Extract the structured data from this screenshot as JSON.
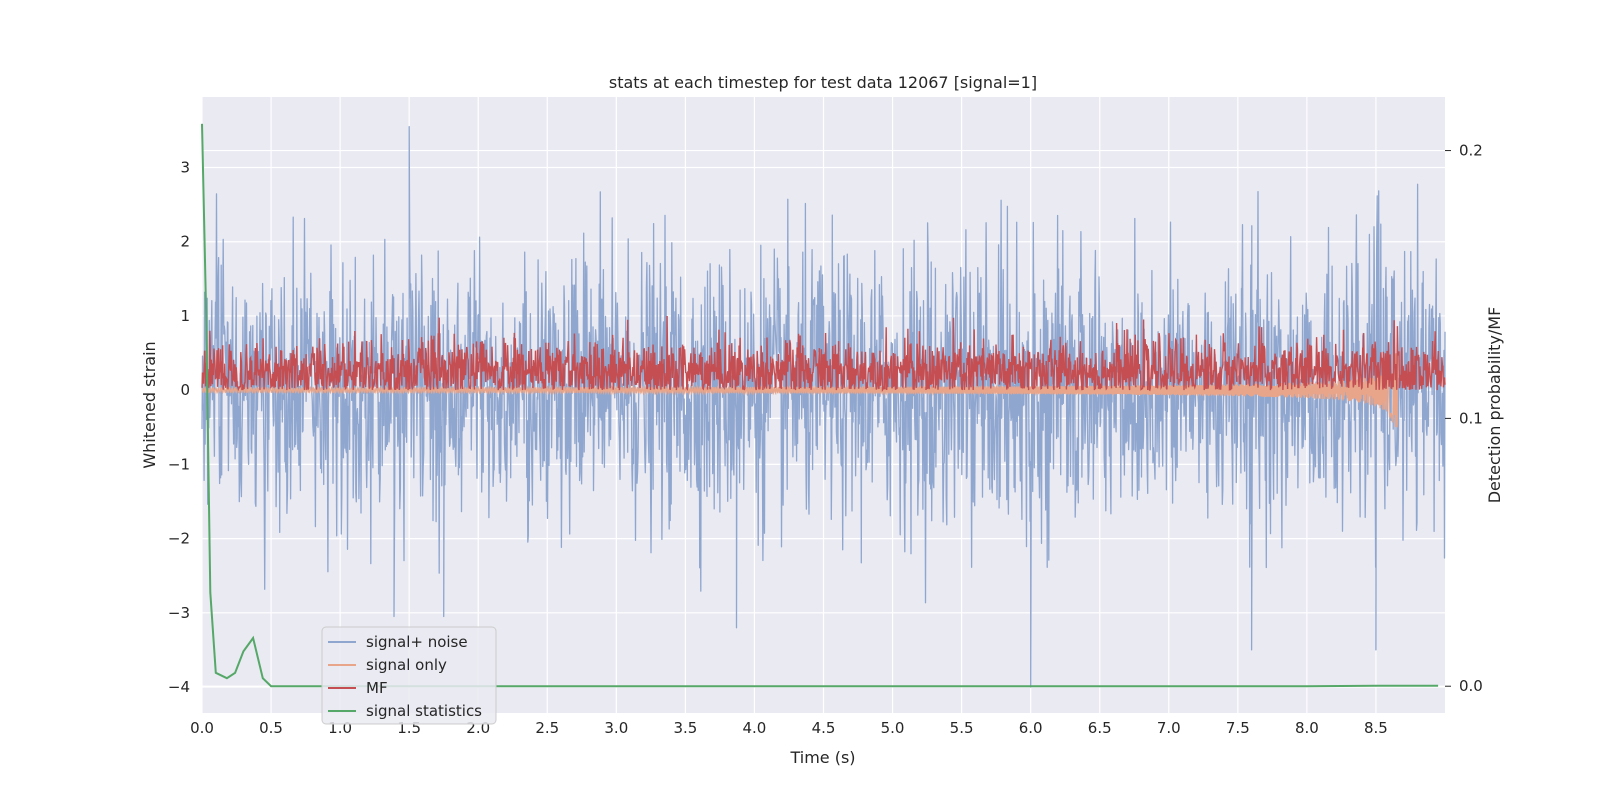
{
  "chart_data": {
    "type": "line",
    "title": "stats at each timestep for test data 12067 [signal=1]",
    "xlabel": "Time (s)",
    "ylabel": "Whitened strain",
    "ylabel_right": "Detection probability/MF",
    "xlim": [
      0,
      9.0
    ],
    "ylim": [
      -4.35,
      3.95
    ],
    "ylim_right": [
      -0.01,
      0.22
    ],
    "x_ticks": [
      0.0,
      0.5,
      1.0,
      1.5,
      2.0,
      2.5,
      3.0,
      3.5,
      4.0,
      4.5,
      5.0,
      5.5,
      6.0,
      6.5,
      7.0,
      7.5,
      8.0,
      8.5
    ],
    "x_tick_labels": [
      "0.0",
      "0.5",
      "1.0",
      "1.5",
      "2.0",
      "2.5",
      "3.0",
      "3.5",
      "4.0",
      "4.5",
      "5.0",
      "5.5",
      "6.0",
      "6.5",
      "7.0",
      "7.5",
      "8.0",
      "8.5"
    ],
    "y_ticks": [
      -4,
      -3,
      -2,
      -1,
      0,
      1,
      2,
      3
    ],
    "y_tick_labels": [
      "−4",
      "−3",
      "−2",
      "−1",
      "0",
      "1",
      "2",
      "3"
    ],
    "y_ticks_right": [
      0.0,
      0.1,
      0.2
    ],
    "y_tick_labels_right": [
      "0.0",
      "0.1",
      "0.2"
    ],
    "grid": true,
    "legend_position": "lower-left",
    "series": [
      {
        "name": "signal+ noise",
        "color": "#8fa6cf",
        "axis": "left",
        "description_stats": {
          "approx_std": 0.9,
          "approx_max": 3.55,
          "approx_min": -4.0,
          "x_range": [
            0.0,
            9.0
          ]
        },
        "highlights": [
          {
            "x": 1.5,
            "y": 3.55
          },
          {
            "x": 1.39,
            "y": -3.05
          },
          {
            "x": 1.75,
            "y": -3.05
          },
          {
            "x": 3.87,
            "y": -3.2
          },
          {
            "x": 6.0,
            "y": -4.0
          },
          {
            "x": 7.6,
            "y": -3.5
          },
          {
            "x": 8.5,
            "y": -3.5
          }
        ]
      },
      {
        "name": "signal only",
        "color": "#e8a58a",
        "axis": "left",
        "description_stats": {
          "baseline": 0.0,
          "amplitude_start": 0.03,
          "amplitude_end": 0.5,
          "merger_x": 8.66
        }
      },
      {
        "name": "MF",
        "color": "#c44e52",
        "axis": "left",
        "description_stats": {
          "mean": 0.25,
          "approx_max": 1.0,
          "approx_min": 0.0,
          "x_range": [
            0.0,
            9.0
          ]
        }
      },
      {
        "name": "signal statistics",
        "color": "#55a868",
        "axis": "right",
        "x": [
          0.0,
          0.03,
          0.06,
          0.1,
          0.18,
          0.24,
          0.3,
          0.37,
          0.44,
          0.5,
          1.0,
          2.0,
          3.0,
          4.0,
          5.0,
          6.0,
          7.0,
          8.0,
          8.5,
          8.95
        ],
        "values": [
          0.21,
          0.14,
          0.035,
          0.005,
          0.003,
          0.005,
          0.013,
          0.018,
          0.003,
          0.0,
          0.0,
          0.0,
          0.0,
          0.0,
          0.0,
          0.0,
          0.0,
          0.0,
          0.0002,
          0.0002
        ]
      }
    ]
  }
}
